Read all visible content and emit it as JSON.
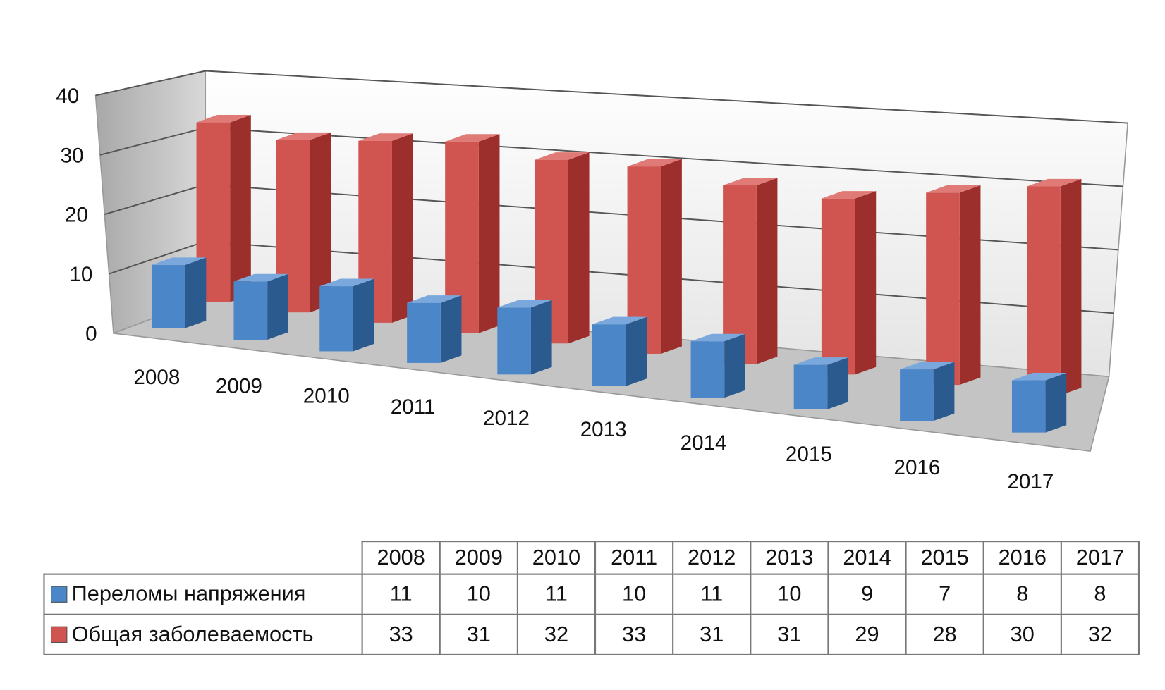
{
  "chart_data": {
    "type": "bar",
    "style": "3d-clustered",
    "categories": [
      "2008",
      "2009",
      "2010",
      "2011",
      "2012",
      "2013",
      "2014",
      "2015",
      "2016",
      "2017"
    ],
    "series": [
      {
        "name": "Переломы напряжения",
        "color": "#4a86c8",
        "values": [
          11,
          10,
          11,
          10,
          11,
          10,
          9,
          7,
          8,
          8
        ]
      },
      {
        "name": "Общая заболеваемость",
        "color": "#d05450",
        "values": [
          33,
          31,
          32,
          33,
          31,
          31,
          29,
          28,
          30,
          32
        ]
      }
    ],
    "yticks": [
      "0",
      "10",
      "20",
      "30",
      "40"
    ],
    "ylim": [
      0,
      40
    ],
    "grid": true,
    "legend": "data-table-below"
  }
}
